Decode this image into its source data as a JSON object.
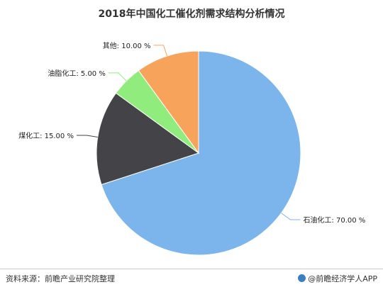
{
  "chart_data": {
    "type": "pie",
    "title": "2018年中国化工催化剂需求结构分析情况",
    "slices": [
      {
        "label": "石油化工: 70.00 %",
        "value": 70.0,
        "color": "#7cb5ec"
      },
      {
        "label": "煤化工: 15.00 %",
        "value": 15.0,
        "color": "#434348"
      },
      {
        "label": "油脂化工: 5.00 %",
        "value": 5.0,
        "color": "#90ed7d"
      },
      {
        "label": "其他: 10.00 %",
        "value": 10.0,
        "color": "#f7a35c"
      }
    ]
  },
  "footer": {
    "source": "资料来源：前瞻产业研究院整理",
    "brand": "@前瞻经济学人APP"
  }
}
